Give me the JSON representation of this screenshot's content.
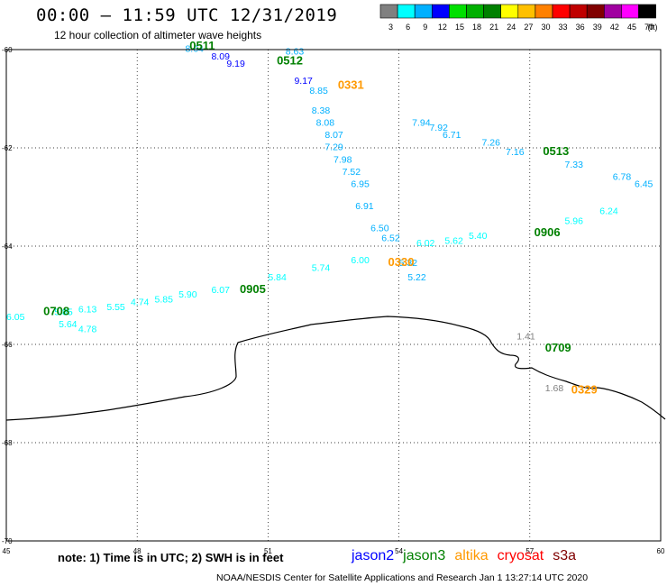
{
  "header": {
    "title": "00:00 – 11:59 UTC 12/31/2019",
    "subtitle": "12 hour collection of altimeter wave heights"
  },
  "scale": {
    "unit": "(ft)",
    "bins": [
      {
        "label": "3",
        "color": "#808080"
      },
      {
        "label": "6",
        "color": "#00ffff"
      },
      {
        "label": "9",
        "color": "#00b0ff"
      },
      {
        "label": "12",
        "color": "#0000ff"
      },
      {
        "label": "15",
        "color": "#00e000"
      },
      {
        "label": "18",
        "color": "#00b000"
      },
      {
        "label": "21",
        "color": "#008000"
      },
      {
        "label": "24",
        "color": "#ffff00"
      },
      {
        "label": "27",
        "color": "#ffc000"
      },
      {
        "label": "30",
        "color": "#ff8000"
      },
      {
        "label": "33",
        "color": "#ff0000"
      },
      {
        "label": "36",
        "color": "#c00000"
      },
      {
        "label": "39",
        "color": "#800000"
      },
      {
        "label": "42",
        "color": "#a000a0"
      },
      {
        "label": "45",
        "color": "#ff00ff"
      },
      {
        "label": "70",
        "color": "#000000"
      }
    ]
  },
  "axes": {
    "x_ticks": [
      "45",
      "48",
      "51",
      "54",
      "57",
      "60"
    ],
    "y_ticks": [
      "-60",
      "-62",
      "-64",
      "-66",
      "-68",
      "-70"
    ]
  },
  "pass_times": [
    {
      "label": "0511",
      "lon": 49.2,
      "lat": -60.0,
      "color": "#008000"
    },
    {
      "label": "0512",
      "lon": 51.2,
      "lat": -60.3,
      "color": "#008000"
    },
    {
      "label": "0331",
      "lon": 52.6,
      "lat": -60.8,
      "color": "#ff9900"
    },
    {
      "label": "0513",
      "lon": 57.3,
      "lat": -62.15,
      "color": "#008000"
    },
    {
      "label": "0906",
      "lon": 57.1,
      "lat": -63.8,
      "color": "#008000"
    },
    {
      "label": "0330",
      "lon": 53.75,
      "lat": -64.4,
      "color": "#ff9900"
    },
    {
      "label": "0905",
      "lon": 50.35,
      "lat": -64.95,
      "color": "#008000"
    },
    {
      "label": "0708",
      "lon": 45.85,
      "lat": -65.4,
      "color": "#008000"
    },
    {
      "label": "0709",
      "lon": 57.35,
      "lat": -66.15,
      "color": "#008000"
    },
    {
      "label": "0329",
      "lon": 57.95,
      "lat": -67.0,
      "color": "#ff9900"
    }
  ],
  "readings": [
    {
      "text": "8.64",
      "lon": 49.1,
      "lat": -60.05,
      "color": "#00b0ff"
    },
    {
      "text": "8.09",
      "lon": 49.7,
      "lat": -60.2,
      "color": "#0000ff"
    },
    {
      "text": "9.19",
      "lon": 50.05,
      "lat": -60.35,
      "color": "#0000ff"
    },
    {
      "text": "8.63",
      "lon": 51.4,
      "lat": -60.1,
      "color": "#00b0ff"
    },
    {
      "text": "9.17",
      "lon": 51.6,
      "lat": -60.7,
      "color": "#0000ff"
    },
    {
      "text": "8.85",
      "lon": 51.95,
      "lat": -60.9,
      "color": "#00b0ff"
    },
    {
      "text": "8.38",
      "lon": 52.0,
      "lat": -61.3,
      "color": "#00b0ff"
    },
    {
      "text": "8.08",
      "lon": 52.1,
      "lat": -61.55,
      "color": "#00b0ff"
    },
    {
      "text": "8.07",
      "lon": 52.3,
      "lat": -61.8,
      "color": "#00b0ff"
    },
    {
      "text": "7.29",
      "lon": 52.3,
      "lat": -62.05,
      "color": "#00b0ff"
    },
    {
      "text": "7.98",
      "lon": 52.5,
      "lat": -62.3,
      "color": "#00b0ff"
    },
    {
      "text": "7.52",
      "lon": 52.7,
      "lat": -62.55,
      "color": "#00b0ff"
    },
    {
      "text": "6.95",
      "lon": 52.9,
      "lat": -62.8,
      "color": "#00b0ff"
    },
    {
      "text": "6.91",
      "lon": 53.0,
      "lat": -63.25,
      "color": "#00b0ff"
    },
    {
      "text": "6.50",
      "lon": 53.35,
      "lat": -63.7,
      "color": "#00b0ff"
    },
    {
      "text": "6.52",
      "lon": 53.6,
      "lat": -63.9,
      "color": "#00b0ff"
    },
    {
      "text": "5.32",
      "lon": 54.0,
      "lat": -64.4,
      "color": "#00b0ff"
    },
    {
      "text": "5.22",
      "lon": 54.2,
      "lat": -64.7,
      "color": "#00b0ff"
    },
    {
      "text": "7.94",
      "lon": 54.3,
      "lat": -61.55,
      "color": "#00b0ff"
    },
    {
      "text": "7.92",
      "lon": 54.7,
      "lat": -61.65,
      "color": "#00b0ff"
    },
    {
      "text": "6.71",
      "lon": 55.0,
      "lat": -61.8,
      "color": "#00b0ff"
    },
    {
      "text": "7.26",
      "lon": 55.9,
      "lat": -61.95,
      "color": "#00b0ff"
    },
    {
      "text": "7.16",
      "lon": 56.45,
      "lat": -62.15,
      "color": "#00b0ff"
    },
    {
      "text": "7.33",
      "lon": 57.8,
      "lat": -62.4,
      "color": "#00b0ff"
    },
    {
      "text": "6.78",
      "lon": 58.9,
      "lat": -62.65,
      "color": "#00b0ff"
    },
    {
      "text": "6.45",
      "lon": 59.4,
      "lat": -62.8,
      "color": "#00b0ff"
    },
    {
      "text": "5.96",
      "lon": 57.8,
      "lat": -63.55,
      "color": "#00ffff"
    },
    {
      "text": "6.24",
      "lon": 58.6,
      "lat": -63.35,
      "color": "#00ffff"
    },
    {
      "text": "5.62",
      "lon": 55.05,
      "lat": -63.95,
      "color": "#00ffff"
    },
    {
      "text": "5.40",
      "lon": 55.6,
      "lat": -63.85,
      "color": "#00ffff"
    },
    {
      "text": "6.02",
      "lon": 54.4,
      "lat": -64.0,
      "color": "#00ffff"
    },
    {
      "text": "6.00",
      "lon": 52.9,
      "lat": -64.35,
      "color": "#00ffff"
    },
    {
      "text": "5.74",
      "lon": 52.0,
      "lat": -64.5,
      "color": "#00ffff"
    },
    {
      "text": "5.84",
      "lon": 51.0,
      "lat": -64.7,
      "color": "#00ffff"
    },
    {
      "text": "6.07",
      "lon": 49.7,
      "lat": -64.95,
      "color": "#00ffff"
    },
    {
      "text": "5.90",
      "lon": 48.95,
      "lat": -65.05,
      "color": "#00ffff"
    },
    {
      "text": "5.85",
      "lon": 48.4,
      "lat": -65.15,
      "color": "#00ffff"
    },
    {
      "text": "4.74",
      "lon": 47.85,
      "lat": -65.2,
      "color": "#00ffff"
    },
    {
      "text": "5.55",
      "lon": 47.3,
      "lat": -65.3,
      "color": "#00ffff"
    },
    {
      "text": "6.13",
      "lon": 46.65,
      "lat": -65.35,
      "color": "#00ffff"
    },
    {
      "text": "5.85",
      "lon": 46.1,
      "lat": -65.4,
      "color": "#00ffff"
    },
    {
      "text": "6.05",
      "lon": 45.0,
      "lat": -65.5,
      "color": "#00ffff"
    },
    {
      "text": "5.64",
      "lon": 46.2,
      "lat": -65.65,
      "color": "#00ffff"
    },
    {
      "text": "4.78",
      "lon": 46.65,
      "lat": -65.75,
      "color": "#00ffff"
    },
    {
      "text": "1.41",
      "lon": 56.7,
      "lat": -65.9,
      "color": "#808080"
    },
    {
      "text": "1.68",
      "lon": 57.35,
      "lat": -66.95,
      "color": "#808080"
    }
  ],
  "footer": {
    "note": "note: 1) Time is in UTC; 2) SWH is in feet",
    "satellites": [
      {
        "label": "jason2",
        "color": "#0000ff"
      },
      {
        "label": "jason3",
        "color": "#008000"
      },
      {
        "label": "altika",
        "color": "#ff9900"
      },
      {
        "label": "cryosat",
        "color": "#ff0000"
      },
      {
        "label": "s3a",
        "color": "#800000"
      }
    ],
    "credit": "NOAA/NESDIS Center for Satellite Applications and Research    Jan  1 13:27:14 UTC 2020"
  }
}
